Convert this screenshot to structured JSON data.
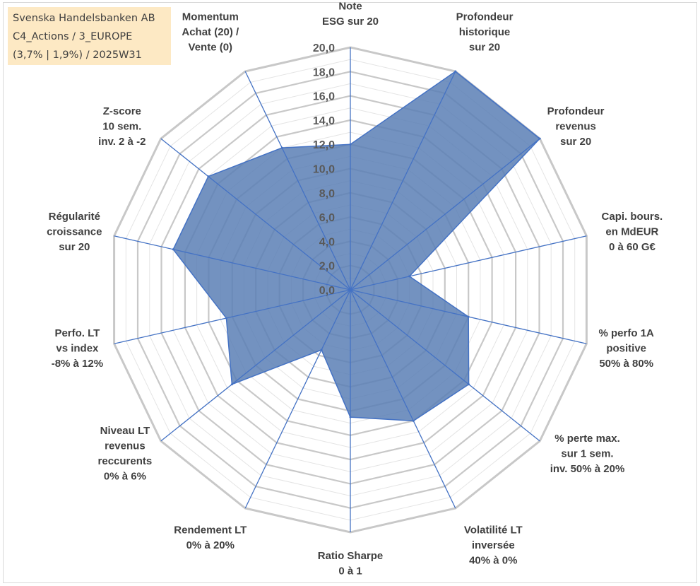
{
  "title": {
    "line1": "Svenska Handelsbanken AB",
    "line2": "C4_Actions / 3_EUROPE",
    "line3": "(3,7% | 1,9%) / 2025W31"
  },
  "chart_data": {
    "type": "radar",
    "rlim": [
      0,
      20
    ],
    "ticks": [
      0,
      2,
      4,
      6,
      8,
      10,
      12,
      14,
      16,
      18,
      20
    ],
    "tick_labels": [
      "0,0",
      "2,0",
      "4,0",
      "6,0",
      "8,0",
      "10,0",
      "12,0",
      "14,0",
      "16,0",
      "18,0",
      "20,0"
    ],
    "grid": true,
    "fill_color": "#5b7fb5",
    "line_color": "#4472c4",
    "grid_color": "#c8c8c8",
    "axes": [
      {
        "label": [
          "Note",
          "ESG sur 20"
        ],
        "value": 12.0
      },
      {
        "label": [
          "Profondeur",
          "historique",
          "sur 20"
        ],
        "value": 20.0
      },
      {
        "label": [
          "Profondeur",
          "revenus",
          "sur 20"
        ],
        "value": 20.0
      },
      {
        "label": [
          "Capi. bours.",
          "en MdEUR",
          "0 à 60 G€"
        ],
        "value": 5.0
      },
      {
        "label": [
          "% perfo 1A",
          "positive",
          "50% à 80%"
        ],
        "value": 10.0
      },
      {
        "label": [
          "% perte max.",
          "sur 1 sem.",
          "inv. 50% à 20%"
        ],
        "value": 12.5
      },
      {
        "label": [
          "Volatilité LT",
          "inversée",
          "40% à 0%"
        ],
        "value": 12.0
      },
      {
        "label": [
          "Ratio Sharpe",
          "0 à 1"
        ],
        "value": 10.5
      },
      {
        "label": [
          "Rendement LT",
          "0% à 20%"
        ],
        "value": 5.5
      },
      {
        "label": [
          "Niveau LT",
          "revenus",
          "reccurents",
          "0% à 6%"
        ],
        "value": 12.5
      },
      {
        "label": [
          "Perfo. LT",
          "vs index",
          "-8% à 12%"
        ],
        "value": 10.5
      },
      {
        "label": [
          "Régularité",
          "croissance",
          "sur 20"
        ],
        "value": 15.0
      },
      {
        "label": [
          "Z-score",
          "10 sem.",
          "inv. 2 à -2"
        ],
        "value": 15.0
      },
      {
        "label": [
          "Momentum",
          "Achat (20) /",
          "Vente (0)"
        ],
        "value": 13.0
      }
    ]
  }
}
